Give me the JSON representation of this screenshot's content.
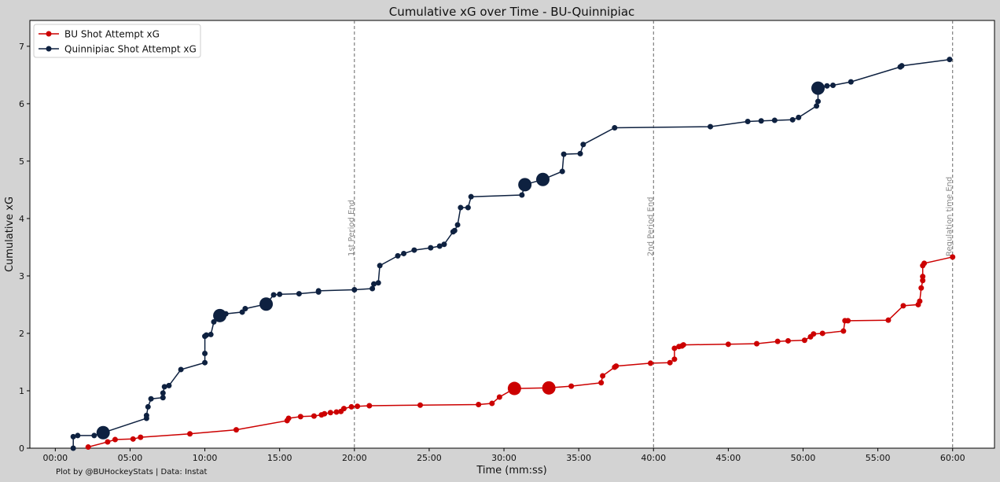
{
  "chart_data": {
    "type": "line",
    "title": "Cumulative xG over Time - BU-Quinnipiac",
    "xlabel": "Time (mm:ss)",
    "ylabel": "Cumulative xG",
    "xlim": [
      -1.7,
      62.8
    ],
    "ylim": [
      0,
      7.45
    ],
    "x_ticks": [
      0,
      5,
      10,
      15,
      20,
      25,
      30,
      35,
      40,
      45,
      50,
      55,
      60
    ],
    "x_tick_labels": [
      "00:00",
      "05:00",
      "10:00",
      "15:00",
      "20:00",
      "25:00",
      "30:00",
      "35:00",
      "40:00",
      "45:00",
      "50:00",
      "55:00",
      "60:00"
    ],
    "y_ticks": [
      0,
      1,
      2,
      3,
      4,
      5,
      6,
      7
    ],
    "y_tick_labels": [
      "0",
      "1",
      "2",
      "3",
      "4",
      "5",
      "6",
      "7"
    ],
    "grid": false,
    "legend_position": "top-left",
    "vlines": [
      {
        "x": 20,
        "label": "1st Period End"
      },
      {
        "x": 40,
        "label": "2nd Period End"
      },
      {
        "x": 60,
        "label": "Regulation time End"
      }
    ],
    "series": [
      {
        "name": "BU Shot Attempt xG",
        "color": "#cc0000",
        "x": [
          2.2,
          3.5,
          4.0,
          5.2,
          5.7,
          9.0,
          12.1,
          15.5,
          15.6,
          16.4,
          17.3,
          17.8,
          18.0,
          18.4,
          18.8,
          19.1,
          19.3,
          19.8,
          20.2,
          21.0,
          24.4,
          28.3,
          29.2,
          29.7,
          30.7,
          33.0,
          34.5,
          36.5,
          36.6,
          37.4,
          37.5,
          39.8,
          41.1,
          41.4,
          41.4,
          41.7,
          41.9,
          42.0,
          45.0,
          46.9,
          48.3,
          49.0,
          50.1,
          50.5,
          50.7,
          51.3,
          52.7,
          52.8,
          53.0,
          55.7,
          56.7,
          57.7,
          57.8,
          57.9,
          58.0,
          58.0,
          58.0,
          58.1,
          60.0
        ],
        "y": [
          0.02,
          0.11,
          0.15,
          0.16,
          0.19,
          0.25,
          0.32,
          0.48,
          0.52,
          0.55,
          0.56,
          0.58,
          0.6,
          0.62,
          0.63,
          0.64,
          0.69,
          0.72,
          0.73,
          0.74,
          0.75,
          0.76,
          0.78,
          0.89,
          1.04,
          1.05,
          1.08,
          1.14,
          1.26,
          1.41,
          1.43,
          1.48,
          1.49,
          1.55,
          1.74,
          1.77,
          1.78,
          1.8,
          1.81,
          1.82,
          1.86,
          1.87,
          1.88,
          1.94,
          1.99,
          2.0,
          2.04,
          2.22,
          2.22,
          2.23,
          2.48,
          2.5,
          2.56,
          2.79,
          2.92,
          2.99,
          3.18,
          3.22,
          3.33
        ],
        "sizes": [
          1,
          1,
          1,
          1,
          1,
          1,
          1,
          1,
          1,
          1,
          1,
          1,
          1,
          1,
          1,
          1,
          1,
          1,
          1,
          1,
          1,
          1,
          1,
          1,
          2.6,
          2.6,
          1,
          1,
          1,
          1,
          1,
          1,
          1,
          1,
          1,
          1,
          1,
          1,
          1,
          1,
          1,
          1,
          1,
          1,
          1,
          1,
          1,
          1,
          1,
          1,
          1,
          1,
          1,
          1,
          1,
          1,
          1,
          1,
          1
        ]
      },
      {
        "name": "Quinnipiac Shot Attempt xG",
        "color": "#0e2140",
        "x": [
          1.2,
          1.2,
          1.5,
          2.6,
          3.2,
          6.1,
          6.1,
          6.2,
          6.4,
          7.2,
          7.2,
          7.3,
          7.6,
          8.4,
          10.0,
          10.0,
          10.0,
          10.1,
          10.4,
          10.6,
          10.9,
          11.0,
          11.4,
          12.5,
          12.7,
          14.1,
          14.6,
          15.0,
          16.3,
          17.6,
          17.6,
          20.0,
          21.2,
          21.3,
          21.6,
          21.7,
          22.9,
          23.3,
          24.0,
          25.1,
          25.7,
          26.0,
          26.6,
          26.7,
          26.9,
          27.1,
          27.6,
          27.8,
          31.2,
          31.4,
          32.6,
          33.9,
          34.0,
          35.1,
          35.3,
          37.4,
          43.8,
          46.3,
          47.2,
          48.1,
          49.3,
          49.7,
          50.9,
          51.0,
          51.0,
          51.6,
          52.0,
          53.2,
          56.5,
          56.6,
          59.8
        ],
        "y": [
          0.0,
          0.2,
          0.22,
          0.22,
          0.27,
          0.52,
          0.57,
          0.72,
          0.86,
          0.88,
          0.96,
          1.07,
          1.09,
          1.37,
          1.49,
          1.65,
          1.95,
          1.97,
          1.98,
          2.2,
          2.25,
          2.31,
          2.34,
          2.37,
          2.43,
          2.51,
          2.67,
          2.68,
          2.69,
          2.72,
          2.74,
          2.76,
          2.78,
          2.86,
          2.88,
          3.18,
          3.35,
          3.39,
          3.45,
          3.49,
          3.52,
          3.55,
          3.77,
          3.79,
          3.89,
          4.19,
          4.19,
          4.38,
          4.41,
          4.59,
          4.68,
          4.82,
          5.12,
          5.13,
          5.29,
          5.58,
          5.6,
          5.69,
          5.7,
          5.71,
          5.72,
          5.76,
          5.96,
          6.04,
          6.27,
          6.31,
          6.32,
          6.38,
          6.64,
          6.66,
          6.77
        ],
        "sizes": [
          1,
          1,
          1,
          1,
          2.6,
          1,
          1,
          1,
          1,
          1,
          1,
          1,
          1,
          1,
          1,
          1,
          1,
          1,
          1,
          1,
          1,
          2.6,
          1,
          1,
          1,
          2.6,
          1,
          1,
          1,
          1,
          1,
          1,
          1,
          1,
          1,
          1,
          1,
          1,
          1,
          1,
          1,
          1,
          1,
          1,
          1,
          1,
          1,
          1,
          1,
          2.6,
          2.6,
          1,
          1,
          1,
          1,
          1,
          1,
          1,
          1,
          1,
          1,
          1,
          1,
          1,
          2.6,
          1,
          1,
          1,
          1,
          1,
          1
        ]
      }
    ]
  },
  "footer": "Plot by @BUHockeyStats | Data: Instat"
}
